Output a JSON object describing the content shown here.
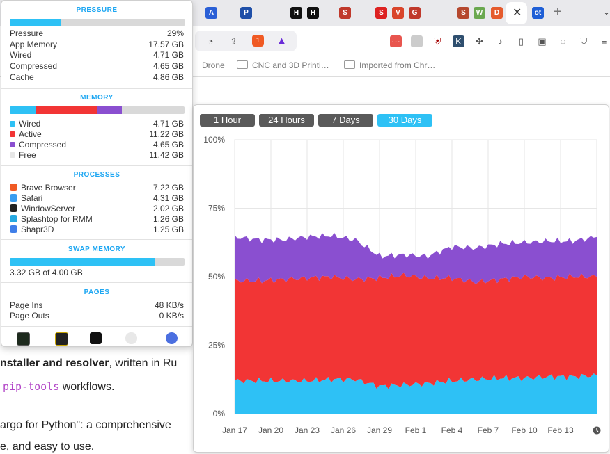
{
  "browser": {
    "tab_icon_labels": [
      "A",
      "P",
      "H",
      "H",
      "S",
      "S",
      "V",
      "G",
      "S",
      "W",
      "D",
      "ot"
    ],
    "bookmarks": [
      "Drone",
      "CNC and 3D Printi…",
      "Imported from Chr…"
    ],
    "shield_badge": "1"
  },
  "page": {
    "line1_bold": "nstaller and resolver",
    "line1_rest": ", written in Ru",
    "line2_code": "pip-tools",
    "line2_rest": " workflows.",
    "line3": "argo for Python\": a comprehensive",
    "line4": "e, and easy to use."
  },
  "panel": {
    "pressure": {
      "title": "PRESSURE",
      "bar_fraction": 0.29,
      "rows": [
        {
          "label": "Pressure",
          "value": "29%"
        },
        {
          "label": "App Memory",
          "value": "17.57 GB"
        },
        {
          "label": "Wired",
          "value": "4.71 GB"
        },
        {
          "label": "Compressed",
          "value": "4.65 GB"
        },
        {
          "label": "Cache",
          "value": "4.86 GB"
        }
      ]
    },
    "memory": {
      "title": "MEMORY",
      "rows": [
        {
          "label": "Wired",
          "value": "4.71 GB",
          "color": "#2ec1f5",
          "gb": 4.71
        },
        {
          "label": "Active",
          "value": "11.22 GB",
          "color": "#f23535",
          "gb": 11.22
        },
        {
          "label": "Compressed",
          "value": "4.65 GB",
          "color": "#8a4fd0",
          "gb": 4.65
        },
        {
          "label": "Free",
          "value": "11.42 GB",
          "color": "#e6e6e6",
          "gb": 11.42
        }
      ]
    },
    "processes": {
      "title": "PROCESSES",
      "rows": [
        {
          "label": "Brave Browser",
          "value": "7.22 GB",
          "icon": "brave-icon",
          "color": "#f05a24"
        },
        {
          "label": "Safari",
          "value": "4.31 GB",
          "icon": "safari-icon",
          "color": "#3a9df0"
        },
        {
          "label": "WindowServer",
          "value": "2.02 GB",
          "icon": "terminal-icon",
          "color": "#222222"
        },
        {
          "label": "Splashtop for RMM",
          "value": "1.26 GB",
          "icon": "splashtop-icon",
          "color": "#27a9e1"
        },
        {
          "label": "Shapr3D",
          "value": "1.25 GB",
          "icon": "shapr3d-icon",
          "color": "#3f7ee8"
        }
      ]
    },
    "swap": {
      "title": "SWAP MEMORY",
      "used_gb": 3.32,
      "total_gb": 4.0,
      "label": "3.32 GB of 4.00 GB"
    },
    "pages": {
      "title": "PAGES",
      "rows": [
        {
          "label": "Page Ins",
          "value": "48 KB/s"
        },
        {
          "label": "Page Outs",
          "value": "0 KB/s"
        }
      ]
    },
    "dock_icons": [
      "activity-monitor-icon",
      "console-icon",
      "terminal-icon",
      "system-info-icon",
      "siri-icon"
    ]
  },
  "chart_panel": {
    "ranges": [
      {
        "label": "1 Hour",
        "active": false
      },
      {
        "label": "24 Hours",
        "active": false
      },
      {
        "label": "7 Days",
        "active": false
      },
      {
        "label": "30 Days",
        "active": true
      }
    ]
  },
  "chart_data": {
    "type": "area",
    "stacked": true,
    "x_ticks": [
      "Jan 17",
      "Jan 20",
      "Jan 23",
      "Jan 26",
      "Jan 29",
      "Feb 1",
      "Feb 4",
      "Feb 7",
      "Feb 10",
      "Feb 13"
    ],
    "y_ticks": [
      "0%",
      "25%",
      "50%",
      "75%",
      "100%"
    ],
    "ylim": [
      0,
      100
    ],
    "grid": true,
    "series": [
      {
        "color": "#2ec1f5",
        "values": [
          12.0,
          12.0,
          12.0,
          12.0,
          12.5,
          12.5,
          10.0,
          10.5,
          11.0,
          12.0,
          12.5,
          13.0,
          13.0,
          13.5,
          13.5,
          14.0
        ]
      },
      {
        "color": "#f23535",
        "values": [
          36.5,
          36.5,
          37.0,
          37.5,
          37.5,
          36.5,
          39.5,
          40.0,
          38.5,
          37.5,
          35.5,
          36.0,
          37.0,
          36.0,
          36.5,
          36.0
        ]
      },
      {
        "color": "#8a4fd0",
        "values": [
          16.0,
          15.0,
          14.5,
          15.0,
          15.0,
          14.5,
          8.0,
          7.5,
          8.0,
          11.5,
          12.5,
          13.0,
          12.5,
          13.5,
          13.0,
          14.5
        ]
      }
    ]
  }
}
